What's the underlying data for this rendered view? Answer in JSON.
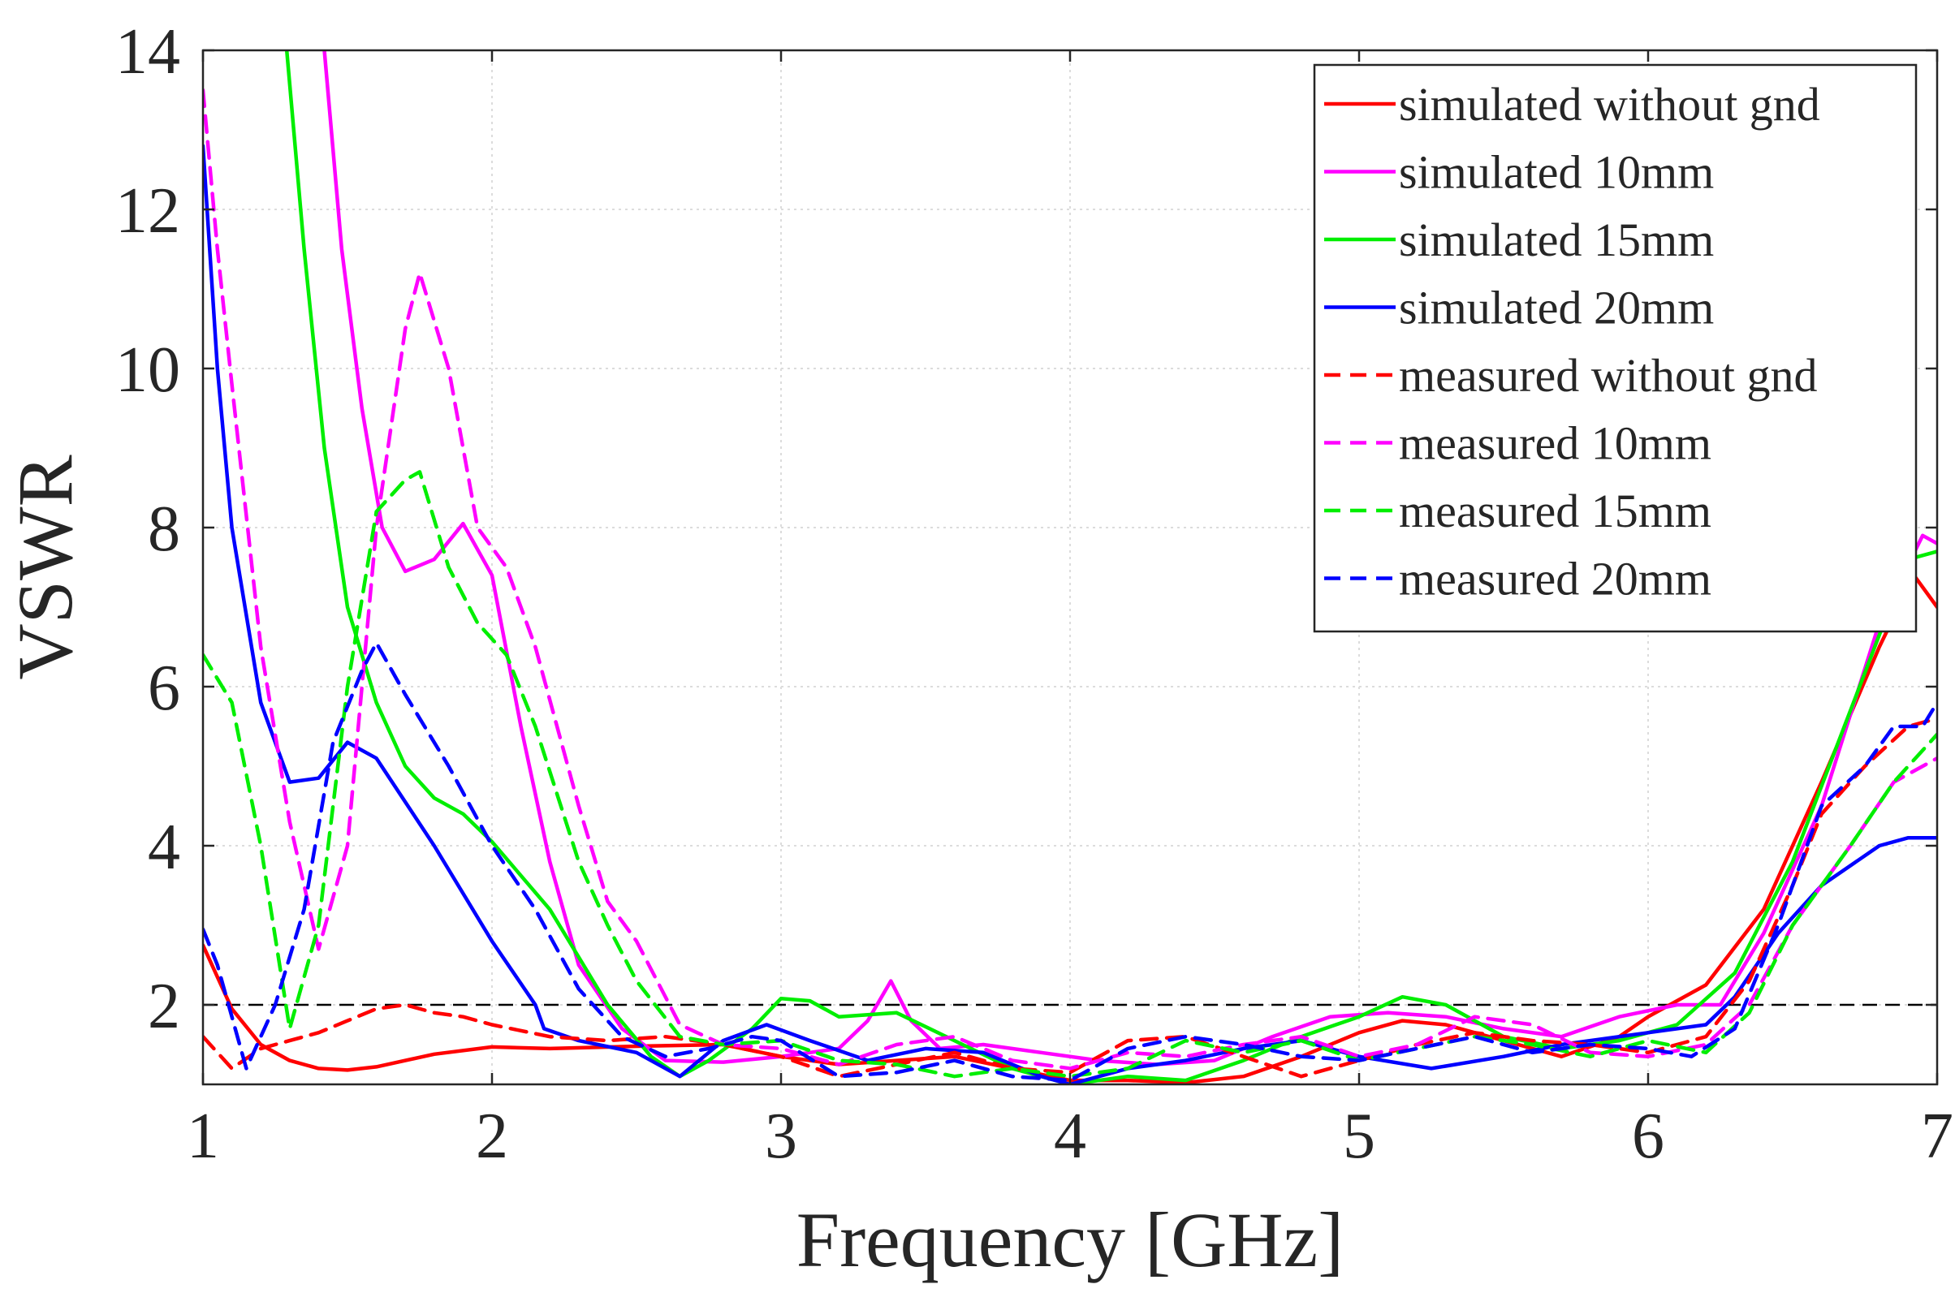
{
  "chart_data": {
    "type": "line",
    "title": "",
    "xlabel": "Frequency [GHz]",
    "ylabel": "VSWR",
    "xlim": [
      1,
      7
    ],
    "ylim": [
      1,
      14
    ],
    "xticks": [
      1,
      2,
      3,
      4,
      5,
      6,
      7
    ],
    "yticks": [
      2,
      4,
      6,
      8,
      10,
      12,
      14
    ],
    "grid": true,
    "legend_position": "top-right",
    "reference_line": {
      "y": 2,
      "style": "dashed",
      "color": "#000000"
    },
    "series": [
      {
        "name": "simulated without gnd",
        "color": "#ff0000",
        "dash": "solid",
        "points": [
          [
            1.0,
            2.75
          ],
          [
            1.1,
            1.95
          ],
          [
            1.2,
            1.5
          ],
          [
            1.3,
            1.3
          ],
          [
            1.4,
            1.2
          ],
          [
            1.5,
            1.18
          ],
          [
            1.6,
            1.22
          ],
          [
            1.8,
            1.38
          ],
          [
            2.0,
            1.47
          ],
          [
            2.2,
            1.45
          ],
          [
            2.5,
            1.48
          ],
          [
            2.8,
            1.5
          ],
          [
            3.0,
            1.35
          ],
          [
            3.2,
            1.25
          ],
          [
            3.4,
            1.3
          ],
          [
            3.6,
            1.35
          ],
          [
            3.8,
            1.2
          ],
          [
            4.0,
            1.05
          ],
          [
            4.2,
            1.05
          ],
          [
            4.4,
            1.02
          ],
          [
            4.6,
            1.1
          ],
          [
            4.8,
            1.35
          ],
          [
            5.0,
            1.65
          ],
          [
            5.15,
            1.8
          ],
          [
            5.3,
            1.75
          ],
          [
            5.5,
            1.55
          ],
          [
            5.7,
            1.35
          ],
          [
            5.9,
            1.6
          ],
          [
            6.0,
            1.85
          ],
          [
            6.2,
            2.25
          ],
          [
            6.4,
            3.2
          ],
          [
            6.6,
            4.8
          ],
          [
            6.8,
            6.5
          ],
          [
            6.92,
            7.4
          ],
          [
            7.0,
            7.0
          ]
        ]
      },
      {
        "name": "simulated 10mm",
        "color": "#ff00ff",
        "dash": "solid",
        "points": [
          [
            1.42,
            14.0
          ],
          [
            1.48,
            11.5
          ],
          [
            1.55,
            9.5
          ],
          [
            1.62,
            8.0
          ],
          [
            1.7,
            7.45
          ],
          [
            1.8,
            7.6
          ],
          [
            1.9,
            8.05
          ],
          [
            2.0,
            7.4
          ],
          [
            2.1,
            5.5
          ],
          [
            2.2,
            3.8
          ],
          [
            2.3,
            2.5
          ],
          [
            2.45,
            1.7
          ],
          [
            2.6,
            1.3
          ],
          [
            2.8,
            1.28
          ],
          [
            3.0,
            1.35
          ],
          [
            3.2,
            1.45
          ],
          [
            3.3,
            1.8
          ],
          [
            3.38,
            2.3
          ],
          [
            3.45,
            1.8
          ],
          [
            3.55,
            1.45
          ],
          [
            3.7,
            1.5
          ],
          [
            3.9,
            1.4
          ],
          [
            4.1,
            1.3
          ],
          [
            4.3,
            1.25
          ],
          [
            4.5,
            1.3
          ],
          [
            4.7,
            1.6
          ],
          [
            4.9,
            1.85
          ],
          [
            5.1,
            1.9
          ],
          [
            5.3,
            1.85
          ],
          [
            5.5,
            1.7
          ],
          [
            5.7,
            1.6
          ],
          [
            5.9,
            1.85
          ],
          [
            6.1,
            2.0
          ],
          [
            6.25,
            2.0
          ],
          [
            6.4,
            2.9
          ],
          [
            6.6,
            4.5
          ],
          [
            6.8,
            6.8
          ],
          [
            6.95,
            7.9
          ],
          [
            7.0,
            7.8
          ]
        ]
      },
      {
        "name": "simulated 15mm",
        "color": "#00ee00",
        "dash": "solid",
        "points": [
          [
            1.29,
            14.0
          ],
          [
            1.35,
            11.5
          ],
          [
            1.42,
            9.0
          ],
          [
            1.5,
            7.0
          ],
          [
            1.6,
            5.8
          ],
          [
            1.7,
            5.0
          ],
          [
            1.8,
            4.6
          ],
          [
            1.9,
            4.4
          ],
          [
            2.0,
            4.05
          ],
          [
            2.2,
            3.2
          ],
          [
            2.4,
            2.0
          ],
          [
            2.55,
            1.35
          ],
          [
            2.65,
            1.1
          ],
          [
            2.75,
            1.3
          ],
          [
            2.9,
            1.7
          ],
          [
            3.0,
            2.08
          ],
          [
            3.1,
            2.05
          ],
          [
            3.2,
            1.85
          ],
          [
            3.4,
            1.9
          ],
          [
            3.6,
            1.55
          ],
          [
            3.8,
            1.2
          ],
          [
            4.0,
            1.0
          ],
          [
            4.2,
            1.1
          ],
          [
            4.4,
            1.05
          ],
          [
            4.6,
            1.3
          ],
          [
            4.8,
            1.6
          ],
          [
            5.0,
            1.85
          ],
          [
            5.15,
            2.1
          ],
          [
            5.3,
            2.0
          ],
          [
            5.5,
            1.6
          ],
          [
            5.7,
            1.45
          ],
          [
            5.9,
            1.55
          ],
          [
            6.1,
            1.75
          ],
          [
            6.3,
            2.4
          ],
          [
            6.5,
            3.8
          ],
          [
            6.7,
            5.7
          ],
          [
            6.9,
            7.6
          ],
          [
            7.0,
            7.7
          ]
        ]
      },
      {
        "name": "simulated 20mm",
        "color": "#0000ff",
        "dash": "solid",
        "points": [
          [
            1.0,
            12.8
          ],
          [
            1.05,
            10.0
          ],
          [
            1.1,
            8.0
          ],
          [
            1.2,
            5.8
          ],
          [
            1.3,
            4.8
          ],
          [
            1.4,
            4.85
          ],
          [
            1.5,
            5.3
          ],
          [
            1.6,
            5.1
          ],
          [
            1.8,
            4.0
          ],
          [
            2.0,
            2.8
          ],
          [
            2.15,
            2.0
          ],
          [
            2.18,
            1.7
          ],
          [
            2.3,
            1.55
          ],
          [
            2.5,
            1.4
          ],
          [
            2.65,
            1.1
          ],
          [
            2.8,
            1.55
          ],
          [
            2.95,
            1.75
          ],
          [
            3.1,
            1.55
          ],
          [
            3.3,
            1.3
          ],
          [
            3.5,
            1.45
          ],
          [
            3.7,
            1.4
          ],
          [
            3.9,
            1.1
          ],
          [
            4.0,
            1.0
          ],
          [
            4.2,
            1.2
          ],
          [
            4.4,
            1.3
          ],
          [
            4.6,
            1.45
          ],
          [
            4.8,
            1.55
          ],
          [
            5.0,
            1.35
          ],
          [
            5.25,
            1.2
          ],
          [
            5.5,
            1.35
          ],
          [
            5.7,
            1.5
          ],
          [
            6.0,
            1.65
          ],
          [
            6.2,
            1.75
          ],
          [
            6.3,
            2.1
          ],
          [
            6.45,
            2.9
          ],
          [
            6.6,
            3.5
          ],
          [
            6.8,
            4.0
          ],
          [
            6.9,
            4.1
          ],
          [
            7.0,
            4.1
          ]
        ]
      },
      {
        "name": "measured without gnd",
        "color": "#ff0000",
        "dash": "dashed",
        "points": [
          [
            1.0,
            1.6
          ],
          [
            1.1,
            1.2
          ],
          [
            1.2,
            1.45
          ],
          [
            1.3,
            1.55
          ],
          [
            1.4,
            1.65
          ],
          [
            1.5,
            1.8
          ],
          [
            1.6,
            1.95
          ],
          [
            1.7,
            2.0
          ],
          [
            1.8,
            1.9
          ],
          [
            1.9,
            1.85
          ],
          [
            2.0,
            1.75
          ],
          [
            2.2,
            1.6
          ],
          [
            2.4,
            1.55
          ],
          [
            2.6,
            1.6
          ],
          [
            2.8,
            1.5
          ],
          [
            3.0,
            1.35
          ],
          [
            3.2,
            1.1
          ],
          [
            3.4,
            1.25
          ],
          [
            3.6,
            1.4
          ],
          [
            3.8,
            1.2
          ],
          [
            4.0,
            1.15
          ],
          [
            4.2,
            1.55
          ],
          [
            4.4,
            1.6
          ],
          [
            4.6,
            1.35
          ],
          [
            4.8,
            1.1
          ],
          [
            5.0,
            1.3
          ],
          [
            5.2,
            1.5
          ],
          [
            5.4,
            1.65
          ],
          [
            5.6,
            1.55
          ],
          [
            5.8,
            1.5
          ],
          [
            6.0,
            1.4
          ],
          [
            6.2,
            1.6
          ],
          [
            6.35,
            2.3
          ],
          [
            6.5,
            3.5
          ],
          [
            6.6,
            4.4
          ],
          [
            6.75,
            5.0
          ],
          [
            6.9,
            5.5
          ],
          [
            7.0,
            5.6
          ]
        ]
      },
      {
        "name": "measured 10mm",
        "color": "#ff00ff",
        "dash": "dashed",
        "points": [
          [
            1.0,
            13.5
          ],
          [
            1.05,
            11.5
          ],
          [
            1.1,
            9.8
          ],
          [
            1.2,
            6.5
          ],
          [
            1.3,
            4.3
          ],
          [
            1.4,
            2.7
          ],
          [
            1.5,
            4.0
          ],
          [
            1.6,
            8.0
          ],
          [
            1.7,
            10.5
          ],
          [
            1.75,
            11.2
          ],
          [
            1.85,
            10.0
          ],
          [
            1.95,
            8.0
          ],
          [
            2.05,
            7.5
          ],
          [
            2.15,
            6.5
          ],
          [
            2.3,
            4.5
          ],
          [
            2.4,
            3.3
          ],
          [
            2.5,
            2.8
          ],
          [
            2.65,
            1.75
          ],
          [
            2.8,
            1.5
          ],
          [
            3.0,
            1.45
          ],
          [
            3.2,
            1.25
          ],
          [
            3.4,
            1.5
          ],
          [
            3.6,
            1.6
          ],
          [
            3.8,
            1.3
          ],
          [
            4.0,
            1.2
          ],
          [
            4.2,
            1.4
          ],
          [
            4.4,
            1.35
          ],
          [
            4.6,
            1.5
          ],
          [
            4.8,
            1.6
          ],
          [
            5.0,
            1.35
          ],
          [
            5.2,
            1.5
          ],
          [
            5.4,
            1.85
          ],
          [
            5.6,
            1.75
          ],
          [
            5.8,
            1.4
          ],
          [
            6.0,
            1.35
          ],
          [
            6.2,
            1.5
          ],
          [
            6.35,
            2.0
          ],
          [
            6.5,
            3.0
          ],
          [
            6.7,
            4.0
          ],
          [
            6.85,
            4.8
          ],
          [
            7.0,
            5.1
          ]
        ]
      },
      {
        "name": "measured 15mm",
        "color": "#00ee00",
        "dash": "dashed",
        "points": [
          [
            1.0,
            6.4
          ],
          [
            1.1,
            5.8
          ],
          [
            1.2,
            4.0
          ],
          [
            1.3,
            1.7
          ],
          [
            1.4,
            3.0
          ],
          [
            1.5,
            6.0
          ],
          [
            1.6,
            8.2
          ],
          [
            1.7,
            8.6
          ],
          [
            1.75,
            8.7
          ],
          [
            1.85,
            7.5
          ],
          [
            1.95,
            6.8
          ],
          [
            2.05,
            6.4
          ],
          [
            2.15,
            5.5
          ],
          [
            2.3,
            3.8
          ],
          [
            2.4,
            3.0
          ],
          [
            2.5,
            2.3
          ],
          [
            2.65,
            1.6
          ],
          [
            2.8,
            1.5
          ],
          [
            3.0,
            1.55
          ],
          [
            3.2,
            1.3
          ],
          [
            3.4,
            1.25
          ],
          [
            3.6,
            1.1
          ],
          [
            3.8,
            1.2
          ],
          [
            4.0,
            1.1
          ],
          [
            4.2,
            1.2
          ],
          [
            4.4,
            1.55
          ],
          [
            4.6,
            1.4
          ],
          [
            4.8,
            1.55
          ],
          [
            5.0,
            1.3
          ],
          [
            5.2,
            1.45
          ],
          [
            5.4,
            1.6
          ],
          [
            5.6,
            1.5
          ],
          [
            5.8,
            1.35
          ],
          [
            6.0,
            1.55
          ],
          [
            6.2,
            1.4
          ],
          [
            6.35,
            1.9
          ],
          [
            6.5,
            3.0
          ],
          [
            6.7,
            4.0
          ],
          [
            6.85,
            4.8
          ],
          [
            7.0,
            5.4
          ]
        ]
      },
      {
        "name": "measured 20mm",
        "color": "#0000ff",
        "dash": "dashed",
        "points": [
          [
            1.0,
            2.95
          ],
          [
            1.05,
            2.5
          ],
          [
            1.15,
            1.2
          ],
          [
            1.25,
            2.0
          ],
          [
            1.35,
            3.2
          ],
          [
            1.45,
            5.3
          ],
          [
            1.55,
            6.2
          ],
          [
            1.6,
            6.55
          ],
          [
            1.7,
            5.9
          ],
          [
            1.85,
            5.0
          ],
          [
            2.0,
            4.0
          ],
          [
            2.15,
            3.2
          ],
          [
            2.3,
            2.2
          ],
          [
            2.45,
            1.6
          ],
          [
            2.6,
            1.35
          ],
          [
            2.75,
            1.45
          ],
          [
            2.9,
            1.6
          ],
          [
            3.0,
            1.55
          ],
          [
            3.2,
            1.1
          ],
          [
            3.4,
            1.15
          ],
          [
            3.6,
            1.3
          ],
          [
            3.8,
            1.1
          ],
          [
            4.0,
            1.05
          ],
          [
            4.2,
            1.45
          ],
          [
            4.4,
            1.6
          ],
          [
            4.6,
            1.5
          ],
          [
            4.8,
            1.35
          ],
          [
            5.0,
            1.3
          ],
          [
            5.2,
            1.45
          ],
          [
            5.4,
            1.6
          ],
          [
            5.6,
            1.4
          ],
          [
            5.8,
            1.5
          ],
          [
            6.0,
            1.45
          ],
          [
            6.15,
            1.35
          ],
          [
            6.3,
            1.7
          ],
          [
            6.45,
            3.0
          ],
          [
            6.6,
            4.5
          ],
          [
            6.75,
            5.0
          ],
          [
            6.85,
            5.5
          ],
          [
            6.95,
            5.5
          ],
          [
            7.0,
            5.8
          ]
        ]
      }
    ]
  }
}
